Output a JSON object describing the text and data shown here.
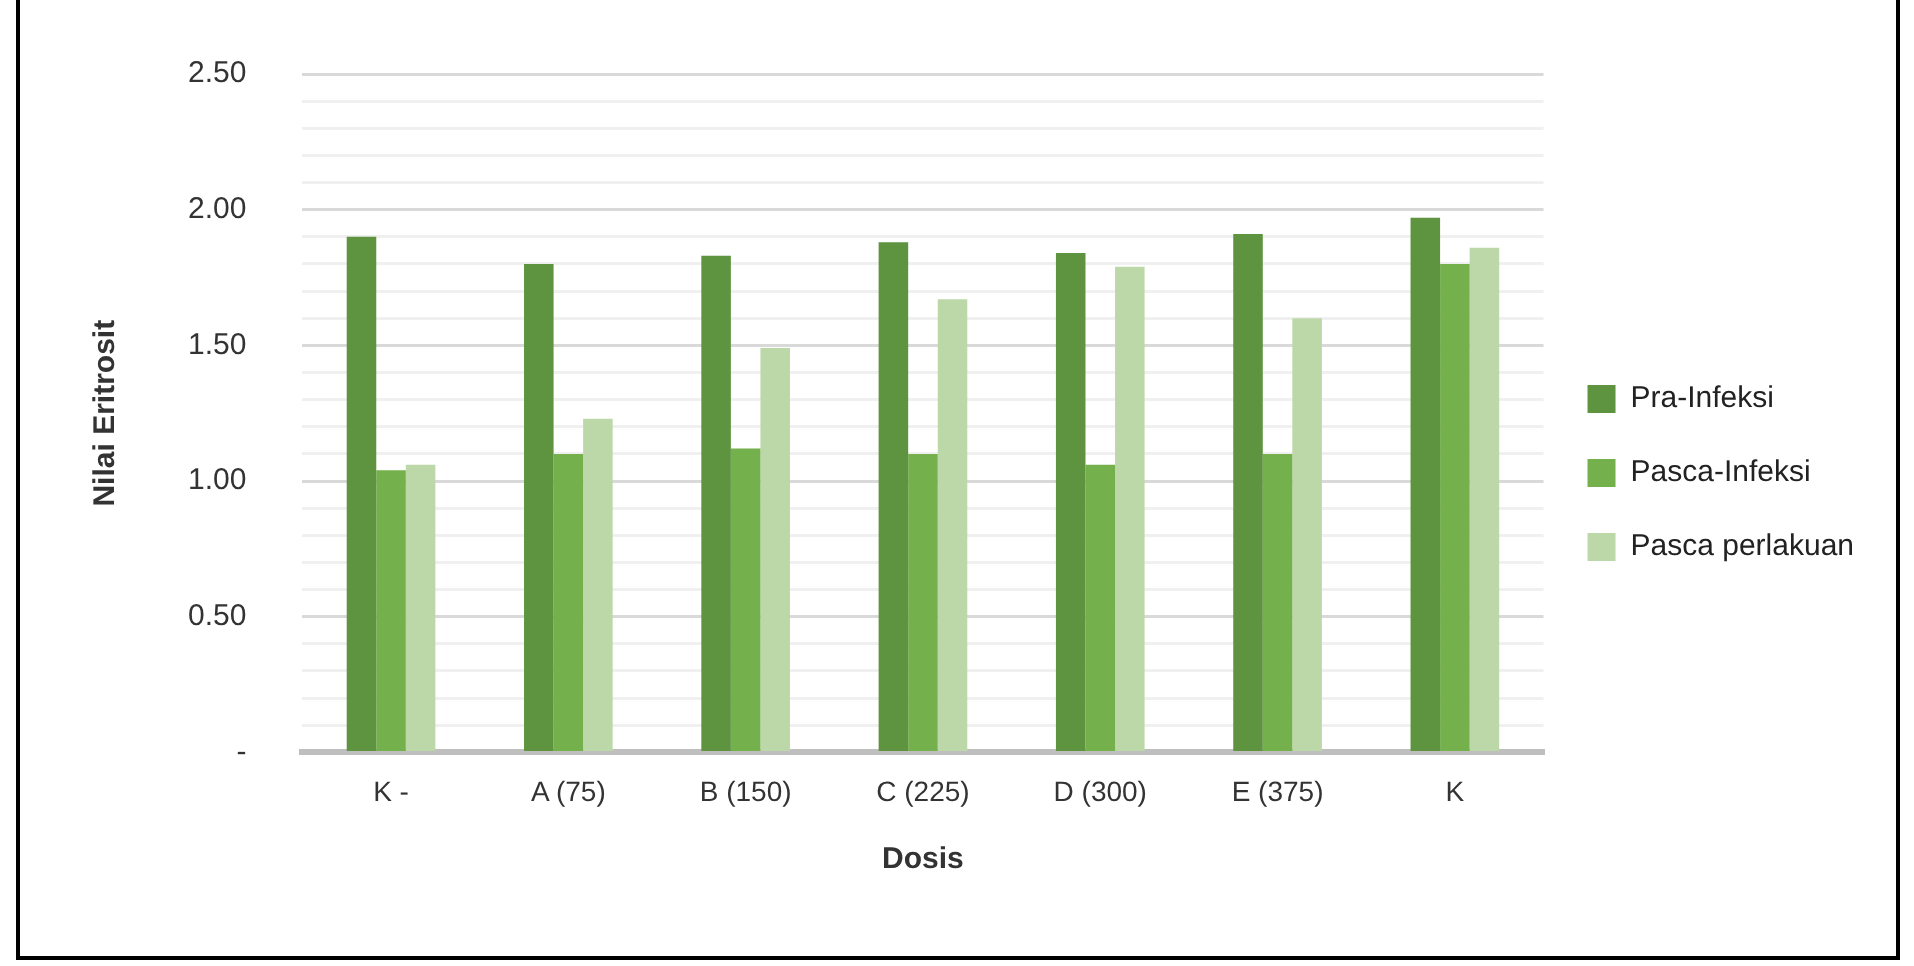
{
  "chart_data": {
    "type": "bar",
    "xlabel": "Dosis",
    "ylabel": "Nilai Eritrosit",
    "categories": [
      "K -",
      "A (75)",
      "B (150)",
      "C (225)",
      "D (300)",
      "E (375)",
      "K"
    ],
    "series": [
      {
        "name": "Pra-Infeksi",
        "color": "#5e9440",
        "values": [
          1.9,
          1.8,
          1.83,
          1.88,
          1.84,
          1.91,
          1.97
        ]
      },
      {
        "name": "Pasca-Infeksi",
        "color": "#74b04c",
        "values": [
          1.04,
          1.1,
          1.12,
          1.1,
          1.06,
          1.1,
          1.8
        ]
      },
      {
        "name": "Pasca perlakuan",
        "color": "#bcd8a8",
        "values": [
          1.06,
          1.23,
          1.49,
          1.67,
          1.79,
          1.6,
          1.86
        ]
      }
    ],
    "ylim": [
      0,
      2.5
    ],
    "yticks": [
      {
        "value": 0,
        "label": "-"
      },
      {
        "value": 0.1,
        "label": null
      },
      {
        "value": 0.2,
        "label": null
      },
      {
        "value": 0.3,
        "label": null
      },
      {
        "value": 0.4,
        "label": null
      },
      {
        "value": 0.5,
        "label": "0.50"
      },
      {
        "value": 0.6,
        "label": null
      },
      {
        "value": 0.7,
        "label": null
      },
      {
        "value": 0.8,
        "label": null
      },
      {
        "value": 0.9,
        "label": null
      },
      {
        "value": 1.0,
        "label": "1.00"
      },
      {
        "value": 1.1,
        "label": null
      },
      {
        "value": 1.2,
        "label": null
      },
      {
        "value": 1.3,
        "label": null
      },
      {
        "value": 1.4,
        "label": null
      },
      {
        "value": 1.5,
        "label": "1.50"
      },
      {
        "value": 1.6,
        "label": null
      },
      {
        "value": 1.7,
        "label": null
      },
      {
        "value": 1.8,
        "label": null
      },
      {
        "value": 1.9,
        "label": null
      },
      {
        "value": 2.0,
        "label": "2.00"
      },
      {
        "value": 2.1,
        "label": null
      },
      {
        "value": 2.2,
        "label": null
      },
      {
        "value": 2.3,
        "label": null
      },
      {
        "value": 2.4,
        "label": null
      },
      {
        "value": 2.5,
        "label": "2.50"
      }
    ],
    "grid": "y",
    "legend": "right"
  }
}
